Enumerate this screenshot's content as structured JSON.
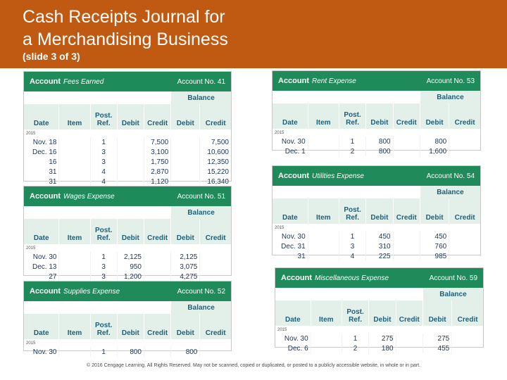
{
  "header": {
    "title_line1": "Cash Receipts Journal for",
    "title_line2": "a Merchandising Business",
    "subtitle": "(slide 3 of 3)",
    "bg_color": "#c05a12"
  },
  "column_labels": {
    "account": "Account",
    "balance": "Balance",
    "date": "Date",
    "item": "Item",
    "post": "Post.",
    "ref": "Ref.",
    "debit": "Debit",
    "credit": "Credit"
  },
  "accent_color": "#1f8a5a",
  "ledgers": [
    {
      "name": "Fees Earned",
      "number": "Account No. 41",
      "year": "2015",
      "rows": [
        {
          "date": "Nov. 18",
          "item": "",
          "ref": "1",
          "debit": "",
          "credit": "7,500",
          "bal_debit": "",
          "bal_credit": "7,500"
        },
        {
          "date": "Dec. 16",
          "item": "",
          "ref": "3",
          "debit": "",
          "credit": "3,100",
          "bal_debit": "",
          "bal_credit": "10,600"
        },
        {
          "date": "16",
          "item": "",
          "ref": "3",
          "debit": "",
          "credit": "1,750",
          "bal_debit": "",
          "bal_credit": "12,350"
        },
        {
          "date": "31",
          "item": "",
          "ref": "4",
          "debit": "",
          "credit": "2,870",
          "bal_debit": "",
          "bal_credit": "15,220"
        },
        {
          "date": "31",
          "item": "",
          "ref": "4",
          "debit": "",
          "credit": "1,120",
          "bal_debit": "",
          "bal_credit": "16,340"
        }
      ]
    },
    {
      "name": "Wages Expense",
      "number": "Account No. 51",
      "year": "2015",
      "rows": [
        {
          "date": "Nov. 30",
          "item": "",
          "ref": "1",
          "debit": "2,125",
          "credit": "",
          "bal_debit": "2,125",
          "bal_credit": ""
        },
        {
          "date": "Dec. 13",
          "item": "",
          "ref": "3",
          "debit": "950",
          "credit": "",
          "bal_debit": "3,075",
          "bal_credit": ""
        },
        {
          "date": "27",
          "item": "",
          "ref": "3",
          "debit": "1,200",
          "credit": "",
          "bal_debit": "4,275",
          "bal_credit": ""
        }
      ]
    },
    {
      "name": "Supplies Expense",
      "number": "Account No. 52",
      "year": "2015",
      "rows": [
        {
          "date": "Nov. 30",
          "item": "",
          "ref": "1",
          "debit": "800",
          "credit": "",
          "bal_debit": "800",
          "bal_credit": ""
        }
      ]
    },
    {
      "name": "Rent Expense",
      "number": "Account No. 53",
      "year": "2015",
      "rows": [
        {
          "date": "Nov. 30",
          "item": "",
          "ref": "1",
          "debit": "800",
          "credit": "",
          "bal_debit": "800",
          "bal_credit": ""
        },
        {
          "date": "Dec. 1",
          "item": "",
          "ref": "2",
          "debit": "800",
          "credit": "",
          "bal_debit": "1,600",
          "bal_credit": ""
        }
      ]
    },
    {
      "name": "Utilities Expense",
      "number": "Account No. 54",
      "year": "2015",
      "rows": [
        {
          "date": "Nov. 30",
          "item": "",
          "ref": "1",
          "debit": "450",
          "credit": "",
          "bal_debit": "450",
          "bal_credit": ""
        },
        {
          "date": "Dec. 31",
          "item": "",
          "ref": "3",
          "debit": "310",
          "credit": "",
          "bal_debit": "760",
          "bal_credit": ""
        },
        {
          "date": "31",
          "item": "",
          "ref": "4",
          "debit": "225",
          "credit": "",
          "bal_debit": "985",
          "bal_credit": ""
        }
      ]
    },
    {
      "name": "Miscellaneous Expense",
      "number": "Account No. 59",
      "year": "2015",
      "rows": [
        {
          "date": "Nov. 30",
          "item": "",
          "ref": "1",
          "debit": "275",
          "credit": "",
          "bal_debit": "275",
          "bal_credit": ""
        },
        {
          "date": "Dec. 6",
          "item": "",
          "ref": "2",
          "debit": "180",
          "credit": "",
          "bal_debit": "455",
          "bal_credit": ""
        }
      ]
    }
  ],
  "footer": {
    "text": "© 2016 Cengage Learning. All Rights Reserved. May not be scanned, copied or duplicated, or posted to a publicly accessible website, in whole or in part."
  }
}
